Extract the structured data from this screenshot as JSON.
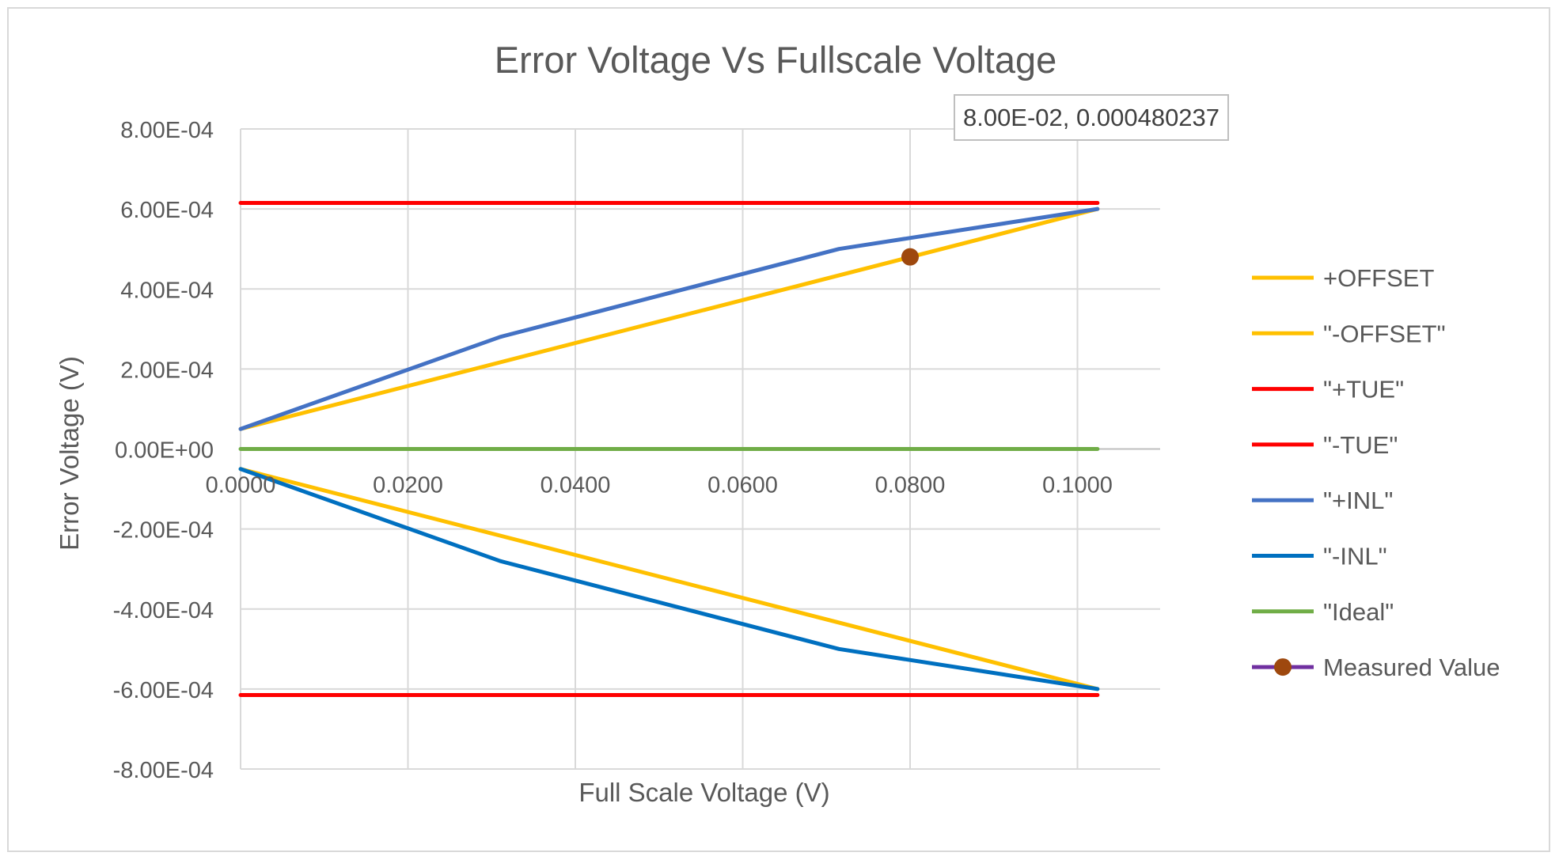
{
  "chart_data": {
    "type": "line",
    "title": "Error Voltage Vs Fullscale Voltage",
    "xlabel": "Full Scale Voltage (V)",
    "ylabel": "Error Voltage (V)",
    "xlim": [
      0,
      0.11
    ],
    "ylim": [
      -0.0008,
      0.0008
    ],
    "x_ticks": [
      "0.0000",
      "0.0200",
      "0.0400",
      "0.0600",
      "0.0800",
      "0.1000"
    ],
    "y_ticks": [
      "8.00E-04",
      "6.00E-04",
      "4.00E-04",
      "2.00E-04",
      "0.00E+00",
      "-2.00E-04",
      "-4.00E-04",
      "-6.00E-04",
      "-8.00E-04"
    ],
    "grid": true,
    "legend_position": "right",
    "series": [
      {
        "name": "+OFFSET",
        "color": "#FFC000",
        "x": [
          0,
          0.1024
        ],
        "y": [
          5e-05,
          0.0006
        ]
      },
      {
        "name": "\"-OFFSET\"",
        "color": "#FFC000",
        "x": [
          0,
          0.1024
        ],
        "y": [
          -5e-05,
          -0.0006
        ]
      },
      {
        "name": "\"+TUE\"",
        "color": "#FF0000",
        "x": [
          0,
          0.1024
        ],
        "y": [
          0.000615,
          0.000615
        ]
      },
      {
        "name": "\"-TUE\"",
        "color": "#FF0000",
        "x": [
          0,
          0.1024
        ],
        "y": [
          -0.000615,
          -0.000615
        ]
      },
      {
        "name": "\"+INL\"",
        "color": "#4472C4",
        "x": [
          0,
          0.031,
          0.0715,
          0.1024
        ],
        "y": [
          5e-05,
          0.00028,
          0.0005,
          0.0006
        ]
      },
      {
        "name": "\"-INL\"",
        "color": "#0070C0",
        "x": [
          0,
          0.031,
          0.0715,
          0.1024
        ],
        "y": [
          -5e-05,
          -0.00028,
          -0.0005,
          -0.0006
        ]
      },
      {
        "name": "\"Ideal\"",
        "color": "#70AD47",
        "x": [
          0,
          0.1024
        ],
        "y": [
          0,
          0
        ]
      },
      {
        "name": "Measured Value",
        "color": "#7030A0",
        "marker_color": "#9E480E",
        "x": [
          0.08
        ],
        "y": [
          0.000480237
        ]
      }
    ],
    "annotation": {
      "text": "8.00E-02, 0.000480237",
      "x": 0.08,
      "y": 0.000480237
    }
  }
}
